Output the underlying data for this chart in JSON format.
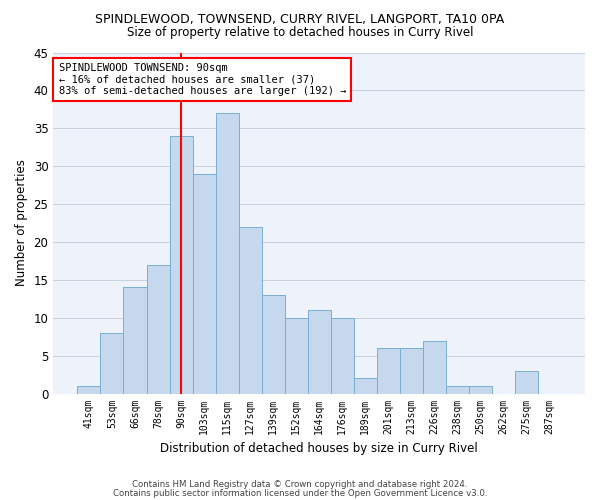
{
  "title": "SPINDLEWOOD, TOWNSEND, CURRY RIVEL, LANGPORT, TA10 0PA",
  "subtitle": "Size of property relative to detached houses in Curry Rivel",
  "xlabel": "Distribution of detached houses by size in Curry Rivel",
  "ylabel": "Number of properties",
  "categories": [
    "41sqm",
    "53sqm",
    "66sqm",
    "78sqm",
    "90sqm",
    "103sqm",
    "115sqm",
    "127sqm",
    "139sqm",
    "152sqm",
    "164sqm",
    "176sqm",
    "189sqm",
    "201sqm",
    "213sqm",
    "226sqm",
    "238sqm",
    "250sqm",
    "262sqm",
    "275sqm",
    "287sqm"
  ],
  "values": [
    1,
    8,
    14,
    17,
    34,
    29,
    37,
    22,
    13,
    10,
    11,
    10,
    2,
    6,
    6,
    7,
    1,
    1,
    0,
    3,
    0
  ],
  "bar_color": "#c5d8ee",
  "bar_edge_color": "#7aaed4",
  "marker_label": "SPINDLEWOOD TOWNSEND: 90sqm",
  "annotation_line1": "← 16% of detached houses are smaller (37)",
  "annotation_line2": "83% of semi-detached houses are larger (192) →",
  "annotation_box_color": "white",
  "annotation_box_edge": "red",
  "vline_color": "red",
  "vline_category": "90sqm",
  "ylim": [
    0,
    45
  ],
  "yticks": [
    0,
    5,
    10,
    15,
    20,
    25,
    30,
    35,
    40,
    45
  ],
  "footer1": "Contains HM Land Registry data © Crown copyright and database right 2024.",
  "footer2": "Contains public sector information licensed under the Open Government Licence v3.0.",
  "bg_color": "#eef2fb",
  "grid_color": "#c8cfe0"
}
